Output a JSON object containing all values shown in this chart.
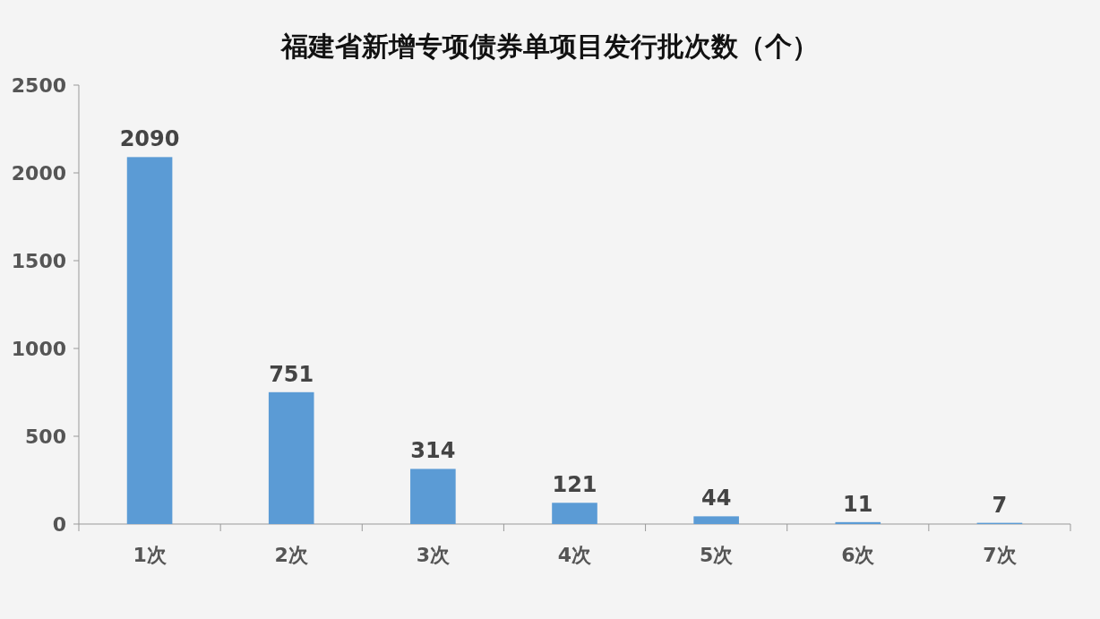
{
  "chart_data": {
    "type": "bar",
    "title": "福建省新增专项债券单项目发行批次数（个）",
    "categories": [
      "1次",
      "2次",
      "3次",
      "4次",
      "5次",
      "6次",
      "7次"
    ],
    "values": [
      2090,
      751,
      314,
      121,
      44,
      11,
      7
    ],
    "color": "#5b9bd5",
    "ylim": [
      0,
      2500
    ],
    "yticks": [
      0,
      500,
      1000,
      1500,
      2000,
      2500
    ],
    "data_labels": true
  }
}
